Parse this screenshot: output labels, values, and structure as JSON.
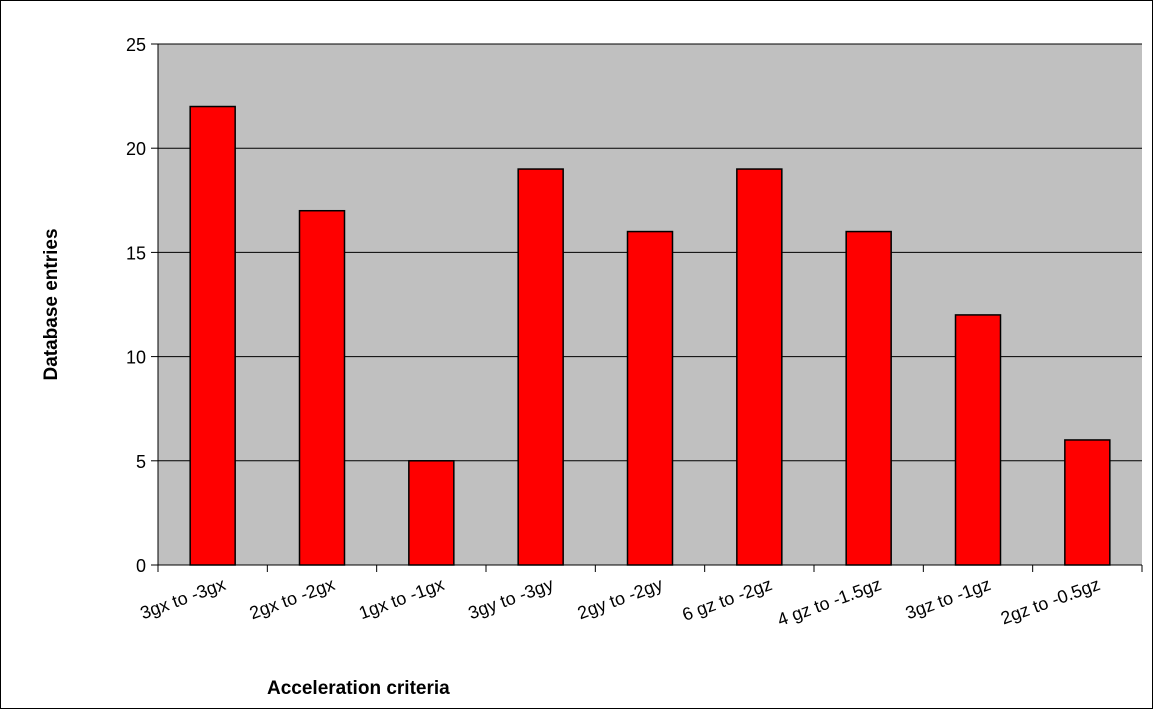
{
  "chart_data": {
    "type": "bar",
    "categories": [
      "3gx to -3gx",
      "2gx to -2gx",
      "1gx to -1gx",
      "3gy to -3gy",
      "2gy to -2gy",
      "6 gz to -2gz",
      "4 gz to -1.5gz",
      "3gz to -1gz",
      "2gz to -0.5gz"
    ],
    "series": [
      {
        "values": [
          22,
          17,
          5,
          19,
          16,
          19,
          16,
          12,
          6
        ]
      }
    ],
    "xlabel": "Acceleration criteria",
    "ylabel": "Database entries",
    "ylim": [
      0,
      25
    ],
    "yticks": [
      0,
      5,
      10,
      15,
      20,
      25
    ],
    "grid": true,
    "legend": "none",
    "colors": {
      "bar_fill": "#ff0000",
      "bar_stroke": "#000000",
      "plot_background": "#c0c0c0",
      "gridline": "#000000"
    }
  }
}
